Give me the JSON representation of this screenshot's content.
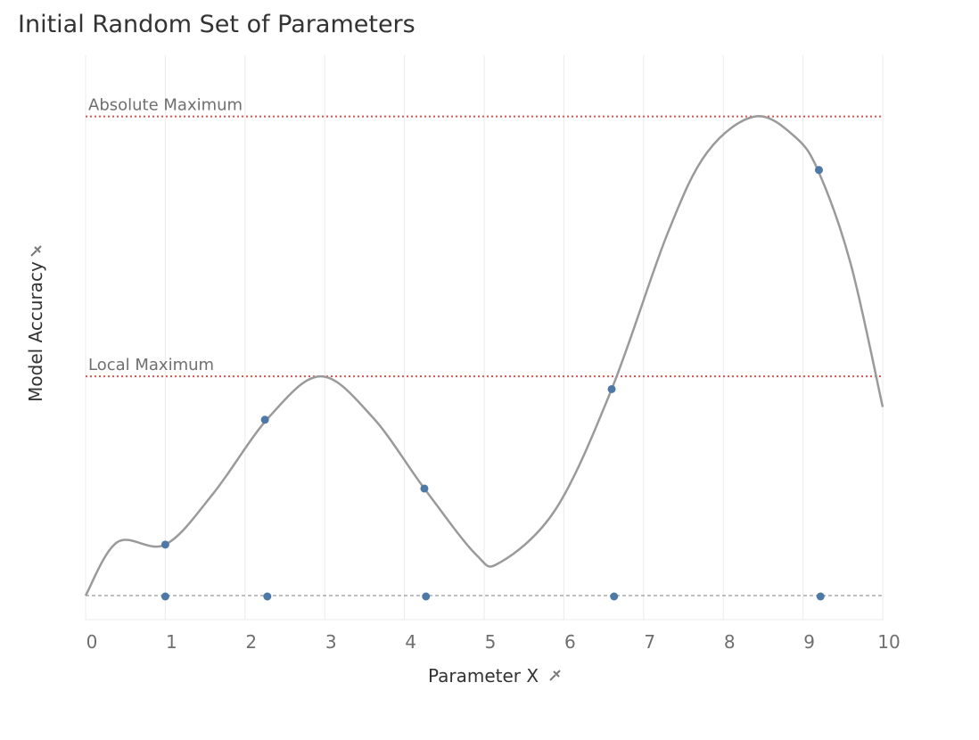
{
  "chart_data": {
    "type": "line",
    "title": "Initial Random Set of Parameters",
    "xlabel": "Parameter X",
    "ylabel": "Model Accuracy",
    "xlim": [
      0,
      10
    ],
    "ylim": [
      0,
      1.06
    ],
    "x_ticks": [
      "0",
      "1",
      "2",
      "3",
      "4",
      "5",
      "6",
      "7",
      "8",
      "9",
      "10"
    ],
    "grid_x": true,
    "legend": "none",
    "colors": {
      "curve": "#9a9a9a",
      "points": "#4e79a7",
      "reference": "#d9534f",
      "baseline": "#aaaaaa",
      "grid": "#ebebeb"
    },
    "reference_lines": [
      {
        "label": "Absolute Maximum",
        "y": 0.94
      },
      {
        "label": "Local Maximum",
        "y": 0.43
      }
    ],
    "curve": {
      "x": [
        0,
        0.4,
        1.0,
        1.6,
        2.3,
        2.95,
        3.6,
        4.25,
        4.9,
        5.2,
        5.9,
        6.6,
        7.3,
        7.8,
        8.4,
        8.9,
        9.2,
        9.6,
        10.0
      ],
      "y": [
        0.0,
        0.105,
        0.1,
        0.2,
        0.35,
        0.43,
        0.35,
        0.21,
        0.08,
        0.065,
        0.17,
        0.405,
        0.71,
        0.87,
        0.94,
        0.9,
        0.83,
        0.65,
        0.37
      ]
    },
    "samples": {
      "x": [
        1.0,
        2.25,
        4.25,
        6.6,
        9.2
      ],
      "y": [
        0.1,
        0.345,
        0.21,
        0.405,
        0.835
      ]
    },
    "baseline_points": {
      "x": [
        1.0,
        2.28,
        4.27,
        6.63,
        9.22
      ],
      "y": [
        0,
        0,
        0,
        0,
        0
      ]
    }
  }
}
